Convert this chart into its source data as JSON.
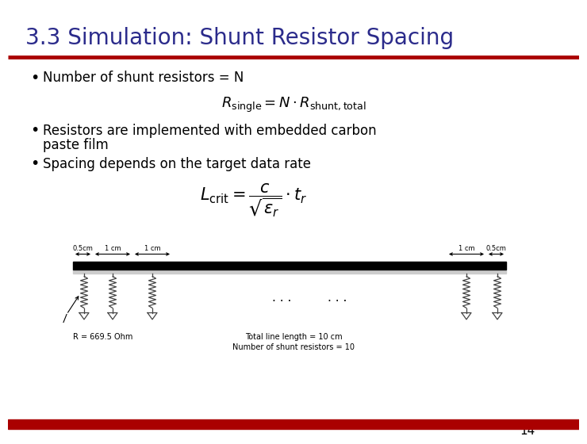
{
  "title": "3.3 Simulation: Shunt Resistor Spacing",
  "title_color": "#2B2B8B",
  "title_fontsize": 20,
  "bg_color": "#FFFFFF",
  "red_bar_color": "#AA0000",
  "bullet1": "Number of shunt resistors = N",
  "formula1": "$R_{\\mathrm{single}} = N \\cdot R_{\\mathrm{shunt,total}}$",
  "bullet2_line1": "Resistors are implemented with embedded carbon",
  "bullet2_line2": "paste film",
  "bullet3": "Spacing depends on the target data rate",
  "formula2": "$L_{\\mathrm{crit}} = \\dfrac{c}{\\sqrt{\\epsilon_r}} \\cdot t_r$",
  "diagram_label_R": "R = 669.5 Ohm",
  "diagram_label_total": "Total line length = 10 cm",
  "diagram_label_N": "Number of shunt resistors = 10",
  "page_number": "14",
  "text_color": "#000000",
  "bullet_fontsize": 12,
  "formula_fontsize": 12
}
